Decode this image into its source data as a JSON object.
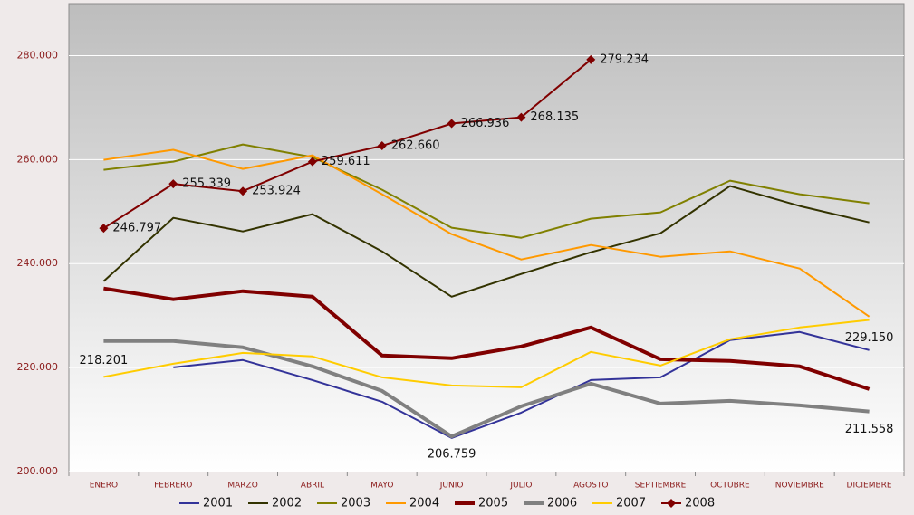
{
  "chart_data": {
    "type": "line",
    "categories": [
      "ENERO",
      "FEBRERO",
      "MARZO",
      "ABRIL",
      "MAYO",
      "JUNIO",
      "JULIO",
      "AGOSTO",
      "SEPTIEMBRE",
      "OCTUBRE",
      "NOVIEMBRE",
      "DICIEMBRE"
    ],
    "ylim": [
      200000,
      290000
    ],
    "yticks": [
      {
        "value": 200000,
        "label": "200.000"
      },
      {
        "value": 220000,
        "label": "220.000"
      },
      {
        "value": 240000,
        "label": "240.000"
      },
      {
        "value": 260000,
        "label": "260.000"
      },
      {
        "value": 280000,
        "label": "280.000"
      }
    ],
    "grid": true,
    "legend": "bottom",
    "series": [
      {
        "name": "2001",
        "color": "#333399",
        "line_width": 2,
        "values": [
          null,
          220040,
          221440,
          217600,
          213420,
          206450,
          211330,
          217600,
          218130,
          225270,
          226840,
          223360
        ]
      },
      {
        "name": "2002",
        "color": "#333300",
        "line_width": 2,
        "values": [
          236600,
          248800,
          246190,
          249500,
          242350,
          233640,
          238000,
          242180,
          245840,
          254900,
          251070,
          247930
        ]
      },
      {
        "name": "2003",
        "color": "#808000",
        "line_width": 2,
        "values": [
          258040,
          259610,
          262920,
          260480,
          254210,
          246890,
          244970,
          248630,
          249850,
          255950,
          253340,
          251590
        ]
      },
      {
        "name": "2004",
        "color": "#ff9900",
        "line_width": 2,
        "values": [
          259960,
          261880,
          258220,
          260830,
          253340,
          245670,
          240790,
          243580,
          241310,
          242350,
          239040,
          229810
        ]
      },
      {
        "name": "2005",
        "color": "#800000",
        "line_width": 4,
        "values": [
          235210,
          233120,
          234690,
          233640,
          222310,
          221790,
          224050,
          227710,
          221610,
          221270,
          220220,
          215860
        ]
      },
      {
        "name": "2006",
        "color": "#808080",
        "line_width": 4,
        "values": [
          225100,
          225100,
          223880,
          220220,
          215510,
          206759,
          212550,
          216910,
          213070,
          213600,
          212720,
          211558
        ],
        "value_labels": [
          null,
          null,
          null,
          null,
          null,
          "206.759",
          null,
          null,
          null,
          null,
          null,
          "211.558"
        ]
      },
      {
        "name": "2007",
        "color": "#ffcc00",
        "line_width": 2,
        "values": [
          218201,
          220740,
          222830,
          222140,
          218130,
          216560,
          216210,
          223010,
          220390,
          225450,
          227710,
          229150
        ],
        "value_labels": [
          "218.201",
          null,
          null,
          null,
          null,
          null,
          null,
          null,
          null,
          null,
          null,
          "229.150"
        ]
      },
      {
        "name": "2008",
        "color": "#800000",
        "line_width": 2,
        "marker": "diamond",
        "values": [
          246797,
          255339,
          253924,
          259611,
          262660,
          266936,
          268135,
          279234,
          null,
          null,
          null,
          null
        ],
        "value_labels": [
          "246.797",
          "255.339",
          "253.924",
          "259.611",
          "262.660",
          "266.936",
          "268.135",
          "279.234",
          null,
          null,
          null,
          null
        ]
      }
    ]
  }
}
